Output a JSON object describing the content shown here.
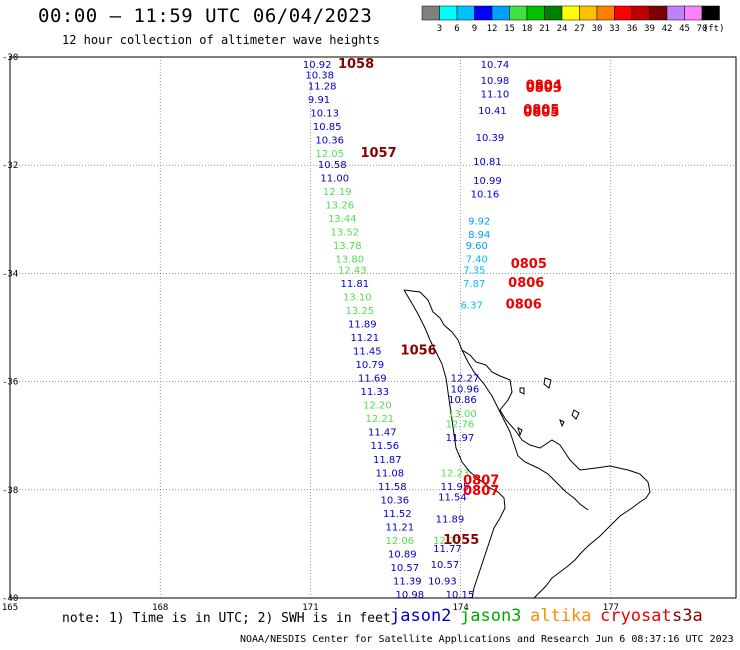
{
  "header": {
    "title": "00:00 – 11:59 UTC 06/04/2023",
    "subtitle": "12 hour collection of altimeter wave heights"
  },
  "colorbar": {
    "labels": [
      "3",
      "6",
      "9",
      "12",
      "15",
      "18",
      "21",
      "24",
      "27",
      "30",
      "33",
      "36",
      "39",
      "42",
      "45",
      "70"
    ],
    "unit": "(ft)",
    "colors": [
      "#808080",
      "#00ffff",
      "#00c0ff",
      "#0000ff",
      "#00a0ff",
      "#40e040",
      "#00c000",
      "#008000",
      "#ffff00",
      "#ffc000",
      "#ff8000",
      "#ff0000",
      "#c00000",
      "#800000",
      "#c080ff",
      "#ff80ff",
      "#000000"
    ]
  },
  "axes": {
    "lat_labels": [
      "-30",
      "-32",
      "-34",
      "-36",
      "-38",
      "-40"
    ],
    "lon_labels": [
      "165",
      "168",
      "171",
      "174",
      "177"
    ]
  },
  "footer": {
    "note": "note:  1) Time is in UTC; 2) SWH is in feet",
    "satellites": [
      {
        "name": "jason2",
        "color": "#0000cc"
      },
      {
        "name": "jason3",
        "color": "#00aa00"
      },
      {
        "name": "altika",
        "color": "#ff8c00"
      },
      {
        "name": "cryosat",
        "color": "#ee0000"
      },
      {
        "name": "s3a",
        "color": "#8b0000"
      }
    ],
    "credit": "NOAA/NESDIS Center for Satellite Applications and Research   Jun  6 08:37:16 UTC 2023"
  },
  "map_data": {
    "track_points": [
      {
        "lat": -30.2,
        "lon": 170.85,
        "swh": "10.92",
        "color": "#0000cc"
      },
      {
        "lat": -30.4,
        "lon": 170.9,
        "swh": "10.38",
        "color": "#0000cc"
      },
      {
        "lat": -30.6,
        "lon": 170.95,
        "swh": "11.28",
        "color": "#0000cc"
      },
      {
        "lat": -30.85,
        "lon": 170.95,
        "swh": "9.91",
        "color": "#0000cc"
      },
      {
        "lat": -31.1,
        "lon": 171.0,
        "swh": "10.13",
        "color": "#0000cc"
      },
      {
        "lat": -31.35,
        "lon": 171.05,
        "swh": "10.85",
        "color": "#0000cc"
      },
      {
        "lat": -31.6,
        "lon": 171.1,
        "swh": "10.36",
        "color": "#0000cc"
      },
      {
        "lat": -31.85,
        "lon": 171.1,
        "swh": "12.05",
        "color": "#55dd55"
      },
      {
        "lat": -32.05,
        "lon": 171.15,
        "swh": "10.58",
        "color": "#0000cc"
      },
      {
        "lat": -32.3,
        "lon": 171.2,
        "swh": "11.00",
        "color": "#0000cc"
      },
      {
        "lat": -32.55,
        "lon": 171.25,
        "swh": "12.19",
        "color": "#55dd55"
      },
      {
        "lat": -32.8,
        "lon": 171.3,
        "swh": "13.26",
        "color": "#55dd55"
      },
      {
        "lat": -33.05,
        "lon": 171.35,
        "swh": "13.44",
        "color": "#55dd55"
      },
      {
        "lat": -33.3,
        "lon": 171.4,
        "swh": "13.52",
        "color": "#55dd55"
      },
      {
        "lat": -33.55,
        "lon": 171.45,
        "swh": "13.78",
        "color": "#55dd55"
      },
      {
        "lat": -33.8,
        "lon": 171.5,
        "swh": "13.80",
        "color": "#55dd55"
      },
      {
        "lat": -34.0,
        "lon": 171.55,
        "swh": "12.43",
        "color": "#55dd55"
      },
      {
        "lat": -34.25,
        "lon": 171.6,
        "swh": "11.81",
        "color": "#0000cc"
      },
      {
        "lat": -34.5,
        "lon": 171.65,
        "swh": "13.10",
        "color": "#55dd55"
      },
      {
        "lat": -34.75,
        "lon": 171.7,
        "swh": "13.25",
        "color": "#55dd55"
      },
      {
        "lat": -35.0,
        "lon": 171.75,
        "swh": "11.89",
        "color": "#0000cc"
      },
      {
        "lat": -35.25,
        "lon": 171.8,
        "swh": "11.21",
        "color": "#0000cc"
      },
      {
        "lat": -35.5,
        "lon": 171.85,
        "swh": "11.45",
        "color": "#0000cc"
      },
      {
        "lat": -35.75,
        "lon": 171.9,
        "swh": "10.79",
        "color": "#0000cc"
      },
      {
        "lat": -36.0,
        "lon": 171.95,
        "swh": "11.69",
        "color": "#0000cc"
      },
      {
        "lat": -36.25,
        "lon": 172.0,
        "swh": "11.33",
        "color": "#0000cc"
      },
      {
        "lat": -36.5,
        "lon": 172.05,
        "swh": "12.20",
        "color": "#55dd55"
      },
      {
        "lat": -36.75,
        "lon": 172.1,
        "swh": "12.21",
        "color": "#55dd55"
      },
      {
        "lat": -37.0,
        "lon": 172.15,
        "swh": "11.47",
        "color": "#0000cc"
      },
      {
        "lat": -37.25,
        "lon": 172.2,
        "swh": "11.56",
        "color": "#0000cc"
      },
      {
        "lat": -37.5,
        "lon": 172.25,
        "swh": "11.87",
        "color": "#0000cc"
      },
      {
        "lat": -37.75,
        "lon": 172.3,
        "swh": "11.08",
        "color": "#0000cc"
      },
      {
        "lat": -38.0,
        "lon": 172.35,
        "swh": "11.58",
        "color": "#0000cc"
      },
      {
        "lat": -38.25,
        "lon": 172.4,
        "swh": "10.36",
        "color": "#0000cc"
      },
      {
        "lat": -38.5,
        "lon": 172.45,
        "swh": "11.52",
        "color": "#0000cc"
      },
      {
        "lat": -38.75,
        "lon": 172.5,
        "swh": "11.21",
        "color": "#0000cc"
      },
      {
        "lat": -39.0,
        "lon": 172.5,
        "swh": "12.06",
        "color": "#55dd55"
      },
      {
        "lat": -39.25,
        "lon": 172.55,
        "swh": "10.89",
        "color": "#0000cc"
      },
      {
        "lat": -39.5,
        "lon": 172.6,
        "swh": "10.57",
        "color": "#0000cc"
      },
      {
        "lat": -39.75,
        "lon": 172.65,
        "swh": "11.39",
        "color": "#0000cc"
      },
      {
        "lat": -40.0,
        "lon": 172.7,
        "swh": "10.98",
        "color": "#0000cc"
      },
      {
        "lat": -30.2,
        "lon": 174.4,
        "swh": "10.74",
        "color": "#0000cc"
      },
      {
        "lat": -30.5,
        "lon": 174.4,
        "swh": "10.98",
        "color": "#0000cc"
      },
      {
        "lat": -30.75,
        "lon": 174.4,
        "swh": "11.10",
        "color": "#0000cc"
      },
      {
        "lat": -31.05,
        "lon": 174.35,
        "swh": "10.41",
        "color": "#0000cc"
      },
      {
        "lat": -31.55,
        "lon": 174.3,
        "swh": "10.39",
        "color": "#0000cc"
      },
      {
        "lat": -32.0,
        "lon": 174.25,
        "swh": "10.81",
        "color": "#0000cc"
      },
      {
        "lat": -32.35,
        "lon": 174.25,
        "swh": "10.99",
        "color": "#0000cc"
      },
      {
        "lat": -32.6,
        "lon": 174.2,
        "swh": "10.16",
        "color": "#0000cc"
      },
      {
        "lat": -33.1,
        "lon": 174.15,
        "swh": "9.92",
        "color": "#00a0ff"
      },
      {
        "lat": -33.35,
        "lon": 174.15,
        "swh": "8.94",
        "color": "#00a0ff"
      },
      {
        "lat": -33.55,
        "lon": 174.1,
        "swh": "9.60",
        "color": "#00a0ff"
      },
      {
        "lat": -33.8,
        "lon": 174.1,
        "swh": "7.40",
        "color": "#00c0ff"
      },
      {
        "lat": -34.0,
        "lon": 174.05,
        "swh": "7.35",
        "color": "#00c0ff"
      },
      {
        "lat": -34.25,
        "lon": 174.05,
        "swh": "7.87",
        "color": "#00c0ff"
      },
      {
        "lat": -34.65,
        "lon": 174.0,
        "swh": "6.37",
        "color": "#00c0ff"
      },
      {
        "lat": -36.0,
        "lon": 173.8,
        "swh": "12.27",
        "color": "#0000cc"
      },
      {
        "lat": -36.2,
        "lon": 173.8,
        "swh": "10.96",
        "color": "#0000cc"
      },
      {
        "lat": -36.4,
        "lon": 173.75,
        "swh": "10.86",
        "color": "#0000cc"
      },
      {
        "lat": -36.65,
        "lon": 173.75,
        "swh": "13.00",
        "color": "#55dd55"
      },
      {
        "lat": -36.85,
        "lon": 173.7,
        "swh": "12.76",
        "color": "#55dd55"
      },
      {
        "lat": -37.1,
        "lon": 173.7,
        "swh": "11.97",
        "color": "#0000cc"
      },
      {
        "lat": -37.75,
        "lon": 173.6,
        "swh": "12.23",
        "color": "#55dd55"
      },
      {
        "lat": -38.0,
        "lon": 173.6,
        "swh": "11.95",
        "color": "#0000cc"
      },
      {
        "lat": -38.2,
        "lon": 173.55,
        "swh": "11.54",
        "color": "#0000cc"
      },
      {
        "lat": -38.6,
        "lon": 173.5,
        "swh": "11.89",
        "color": "#0000cc"
      },
      {
        "lat": -39.0,
        "lon": 173.45,
        "swh": "12.77",
        "color": "#55dd55"
      },
      {
        "lat": -39.15,
        "lon": 173.45,
        "swh": "11.77",
        "color": "#0000cc"
      },
      {
        "lat": -39.45,
        "lon": 173.4,
        "swh": "10.57",
        "color": "#0000cc"
      },
      {
        "lat": -39.75,
        "lon": 173.35,
        "swh": "10.93",
        "color": "#0000cc"
      },
      {
        "lat": -40.0,
        "lon": 173.7,
        "swh": "10.15",
        "color": "#0000cc"
      }
    ],
    "time_labels": [
      {
        "lat": -30.2,
        "lon": 171.55,
        "text": "1058",
        "color": "#8b0000"
      },
      {
        "lat": -31.85,
        "lon": 172.0,
        "text": "1057",
        "color": "#8b0000"
      },
      {
        "lat": -35.5,
        "lon": 172.8,
        "text": "1056",
        "color": "#8b0000"
      },
      {
        "lat": -39.0,
        "lon": 173.65,
        "text": "1055",
        "color": "#8b0000"
      },
      {
        "lat": -30.6,
        "lon": 175.3,
        "text": "0804",
        "color": "#ee0000"
      },
      {
        "lat": -30.65,
        "lon": 175.3,
        "text": "0803",
        "color": "#ee0000"
      },
      {
        "lat": -31.05,
        "lon": 175.25,
        "text": "0805",
        "color": "#ee0000"
      },
      {
        "lat": -31.1,
        "lon": 175.25,
        "text": "0805",
        "color": "#ee0000"
      },
      {
        "lat": -33.9,
        "lon": 175.0,
        "text": "0805",
        "color": "#ee0000"
      },
      {
        "lat": -34.25,
        "lon": 174.95,
        "text": "0806",
        "color": "#ee0000"
      },
      {
        "lat": -34.65,
        "lon": 174.9,
        "text": "0806",
        "color": "#ee0000"
      },
      {
        "lat": -37.9,
        "lon": 174.05,
        "text": "0807",
        "color": "#ee0000"
      },
      {
        "lat": -38.1,
        "lon": 174.05,
        "text": "0807",
        "color": "#ee0000"
      }
    ]
  }
}
